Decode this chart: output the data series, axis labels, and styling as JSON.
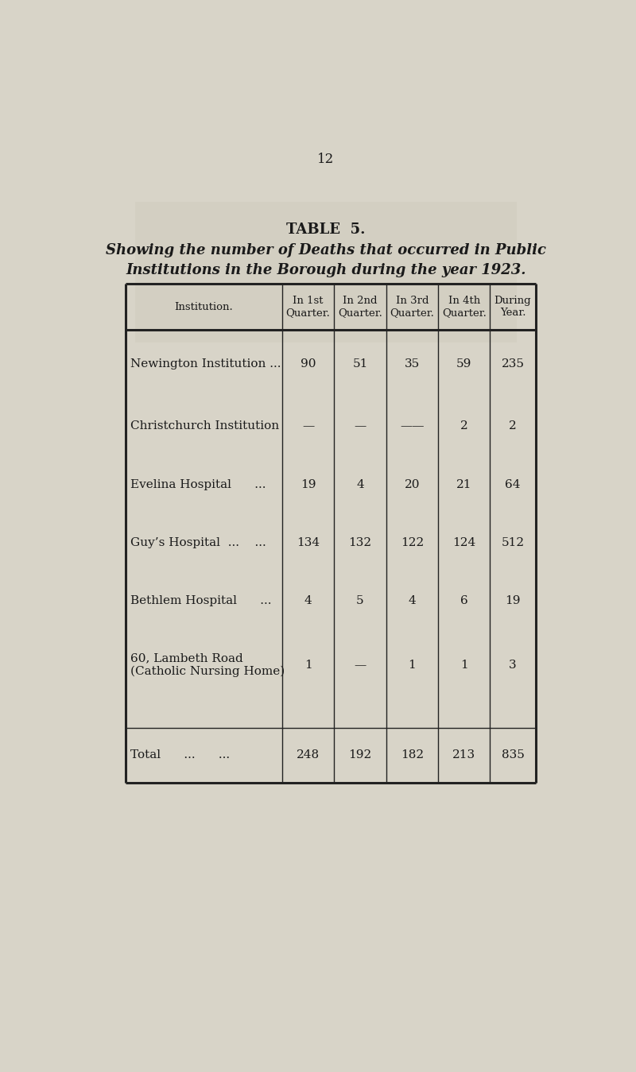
{
  "page_number": "12",
  "table_title": "TABLE  5.",
  "table_subtitle_line1": "Showing the number of Deaths that occurred in Public",
  "table_subtitle_line2": "Institutions in the Borough during the year 1923.",
  "col_headers": [
    "Institution.",
    "In 1st\nQuarter.",
    "In 2nd\nQuarter.",
    "In 3rd\nQuarter.",
    "In 4th\nQuarter.",
    "During\nYear."
  ],
  "rows": [
    {
      "institution": "Newington Institution ...",
      "q1": "90",
      "q2": "51",
      "q3": "35",
      "q4": "59",
      "year": "235"
    },
    {
      "institution": "Christchurch Institution",
      "q1": "—",
      "q2": "—",
      "q3": "——",
      "q4": "2",
      "year": "2"
    },
    {
      "institution": "Evelina Hospital      ...",
      "q1": "19",
      "q2": "4",
      "q3": "20",
      "q4": "21",
      "year": "64"
    },
    {
      "institution": "Guy’s Hospital  ...    ...",
      "q1": "134",
      "q2": "132",
      "q3": "122",
      "q4": "124",
      "year": "512"
    },
    {
      "institution": "Bethlem Hospital      ...",
      "q1": "4",
      "q2": "5",
      "q3": "4",
      "q4": "6",
      "year": "19"
    },
    {
      "institution": "60, Lambeth Road\n(Catholic Nursing Home)",
      "q1": "1",
      "q2": "—",
      "q3": "1",
      "q4": "1",
      "year": "3"
    }
  ],
  "total_row": {
    "institution": "Total      ...      ...",
    "q1": "248",
    "q2": "192",
    "q3": "182",
    "q4": "213",
    "year": "835"
  },
  "bg_color": "#d8d4c8",
  "table_bg": "#ccc8bc",
  "text_color": "#1a1a1a",
  "line_color": "#222222",
  "font_size_title": 13,
  "font_size_subtitle": 13,
  "font_size_header": 9.5,
  "font_size_data": 11,
  "font_size_page": 12
}
